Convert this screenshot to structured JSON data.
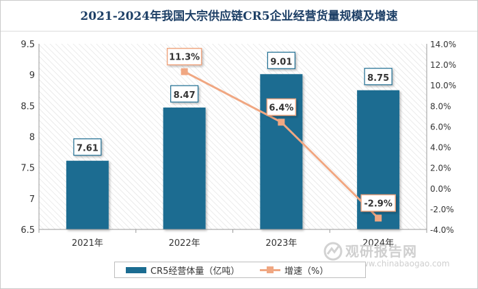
{
  "chart_data": {
    "type": "bar",
    "title": "2021-2024年我国大宗供应链CR5企业经营货量规模及增速",
    "categories": [
      "2021年",
      "2022年",
      "2023年",
      "2024年"
    ],
    "series": [
      {
        "name": "CR5经营体量（亿吨）",
        "kind": "bar",
        "axis": "left",
        "values": [
          7.61,
          8.47,
          9.01,
          8.75
        ],
        "labels": [
          "7.61",
          "8.47",
          "9.01",
          "8.75"
        ],
        "color": "#1b6c91"
      },
      {
        "name": "增速（%）",
        "kind": "line",
        "axis": "right",
        "values": [
          null,
          11.3,
          6.4,
          -2.9
        ],
        "labels": [
          "",
          "11.3%",
          "6.4%",
          "-2.9%"
        ],
        "color": "#f0a782"
      }
    ],
    "y_left": {
      "min": 6.5,
      "max": 9.5,
      "ticks": [
        9.5,
        9,
        8.5,
        8,
        7.5,
        7,
        6.5
      ],
      "tick_labels": [
        "9.5",
        "9",
        "8.5",
        "8",
        "7.5",
        "7",
        "6.5"
      ]
    },
    "y_right": {
      "min": -4,
      "max": 14,
      "ticks": [
        14,
        12,
        10,
        8,
        6,
        4,
        2,
        0,
        -2,
        -4
      ],
      "tick_labels": [
        "14.0%",
        "12.0%",
        "10.0%",
        "8.0%",
        "6.0%",
        "4.0%",
        "2.0%",
        "0.0%",
        "-2.0%",
        "-4.0%"
      ]
    },
    "legend": "bottom"
  },
  "watermark": {
    "text_cn": "观研报告网",
    "text_en": "www.chinabaogao.com"
  }
}
